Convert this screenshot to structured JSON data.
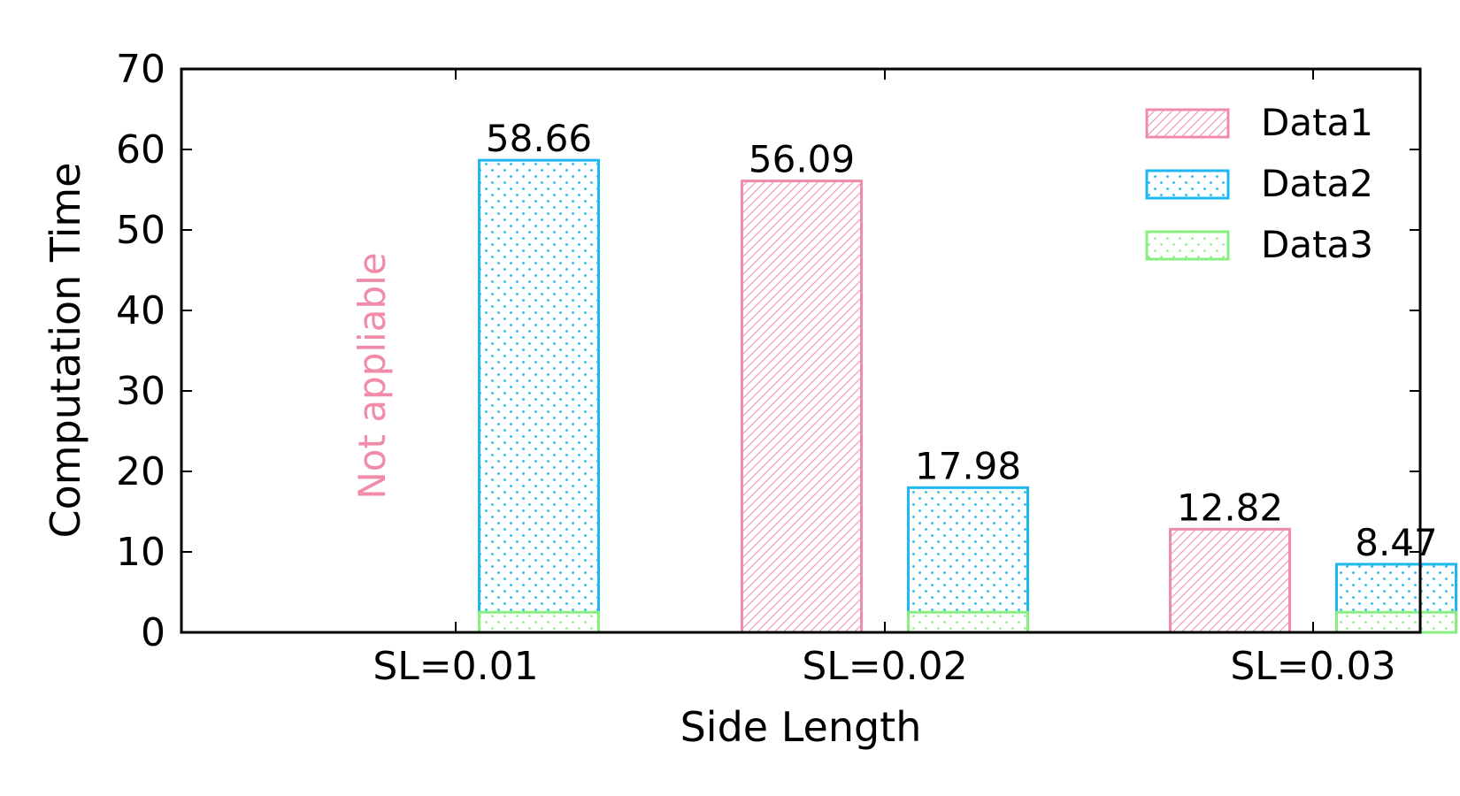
{
  "chart_data": {
    "type": "bar",
    "title": "",
    "xlabel": "Side Length",
    "ylabel": "Computation Time",
    "ylim": [
      0,
      70
    ],
    "yticks": [
      0,
      10,
      20,
      30,
      40,
      50,
      60,
      70
    ],
    "categories": [
      "SL=0.01",
      "SL=0.02",
      "SL=0.03"
    ],
    "stacked_bottom_series": "Data3",
    "series": [
      {
        "name": "Data1",
        "values": [
          null,
          56.09,
          12.82
        ],
        "color": "#F08CA8",
        "hatch": "diagonal"
      },
      {
        "name": "Data2",
        "values": [
          58.66,
          17.98,
          8.47
        ],
        "color": "#1EB8F0",
        "hatch": "dots"
      },
      {
        "name": "Data3",
        "values": [
          2.5,
          2.5,
          2.5
        ],
        "color": "#88EE80",
        "hatch": "sparse-dots"
      }
    ],
    "data_labels": [
      {
        "series": "Data1",
        "category": 1,
        "text": "56.09"
      },
      {
        "series": "Data1",
        "category": 2,
        "text": "12.82"
      },
      {
        "series": "Data2",
        "category": 0,
        "text": "58.66"
      },
      {
        "series": "Data2",
        "category": 1,
        "text": "17.98"
      },
      {
        "series": "Data2",
        "category": 2,
        "text": "8.47"
      }
    ],
    "annotation": {
      "text": "Not appliable",
      "category": 0,
      "series": "Data1",
      "color": "#F08CA8"
    },
    "legend": {
      "position": "top-right",
      "entries": [
        "Data1",
        "Data2",
        "Data3"
      ]
    },
    "grid": false
  }
}
